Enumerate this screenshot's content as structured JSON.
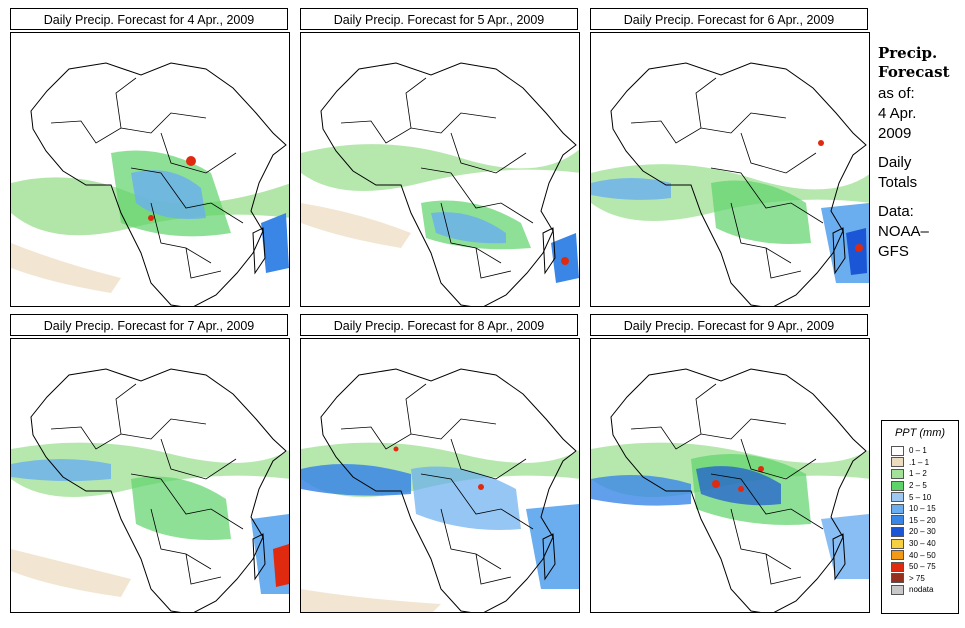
{
  "panels": [
    {
      "title": "Daily Precip. Forecast for  4 Apr., 2009"
    },
    {
      "title": "Daily Precip. Forecast for  5 Apr., 2009"
    },
    {
      "title": "Daily Precip. Forecast for  6 Apr., 2009"
    },
    {
      "title": "Daily Precip. Forecast for  7 Apr., 2009"
    },
    {
      "title": "Daily Precip. Forecast for  8 Apr., 2009"
    },
    {
      "title": "Daily Precip. Forecast for  9 Apr., 2009"
    }
  ],
  "sidebar": {
    "title_line1": "Precip.",
    "title_line2": "Forecast",
    "asof": "as of:",
    "date_line1": "4 Apr.",
    "date_line2": "2009",
    "daily_line1": "Daily",
    "daily_line2": "Totals",
    "data_line1": "Data:",
    "data_line2": "NOAA–",
    "data_line3": "GFS"
  },
  "legend": {
    "title": "PPT (mm)",
    "items": [
      {
        "label": "0 – 1",
        "color": "#ffffff"
      },
      {
        "label": ".1 – 1",
        "color": "#ecdcc0"
      },
      {
        "label": "1 – 2",
        "color": "#a4e29a"
      },
      {
        "label": "2 – 5",
        "color": "#5ed36a"
      },
      {
        "label": "5 – 10",
        "color": "#9ec8f2"
      },
      {
        "label": "10 – 15",
        "color": "#6aaef0"
      },
      {
        "label": "15 – 20",
        "color": "#3a86e6"
      },
      {
        "label": "20 – 30",
        "color": "#1a56d6"
      },
      {
        "label": "30 – 40",
        "color": "#f5d040"
      },
      {
        "label": "40 – 50",
        "color": "#f29a18"
      },
      {
        "label": "50 – 75",
        "color": "#e02a10"
      },
      {
        "label": "> 75",
        "color": "#96301e"
      },
      {
        "label": "nodata",
        "color": "#c8c8c8"
      }
    ]
  }
}
